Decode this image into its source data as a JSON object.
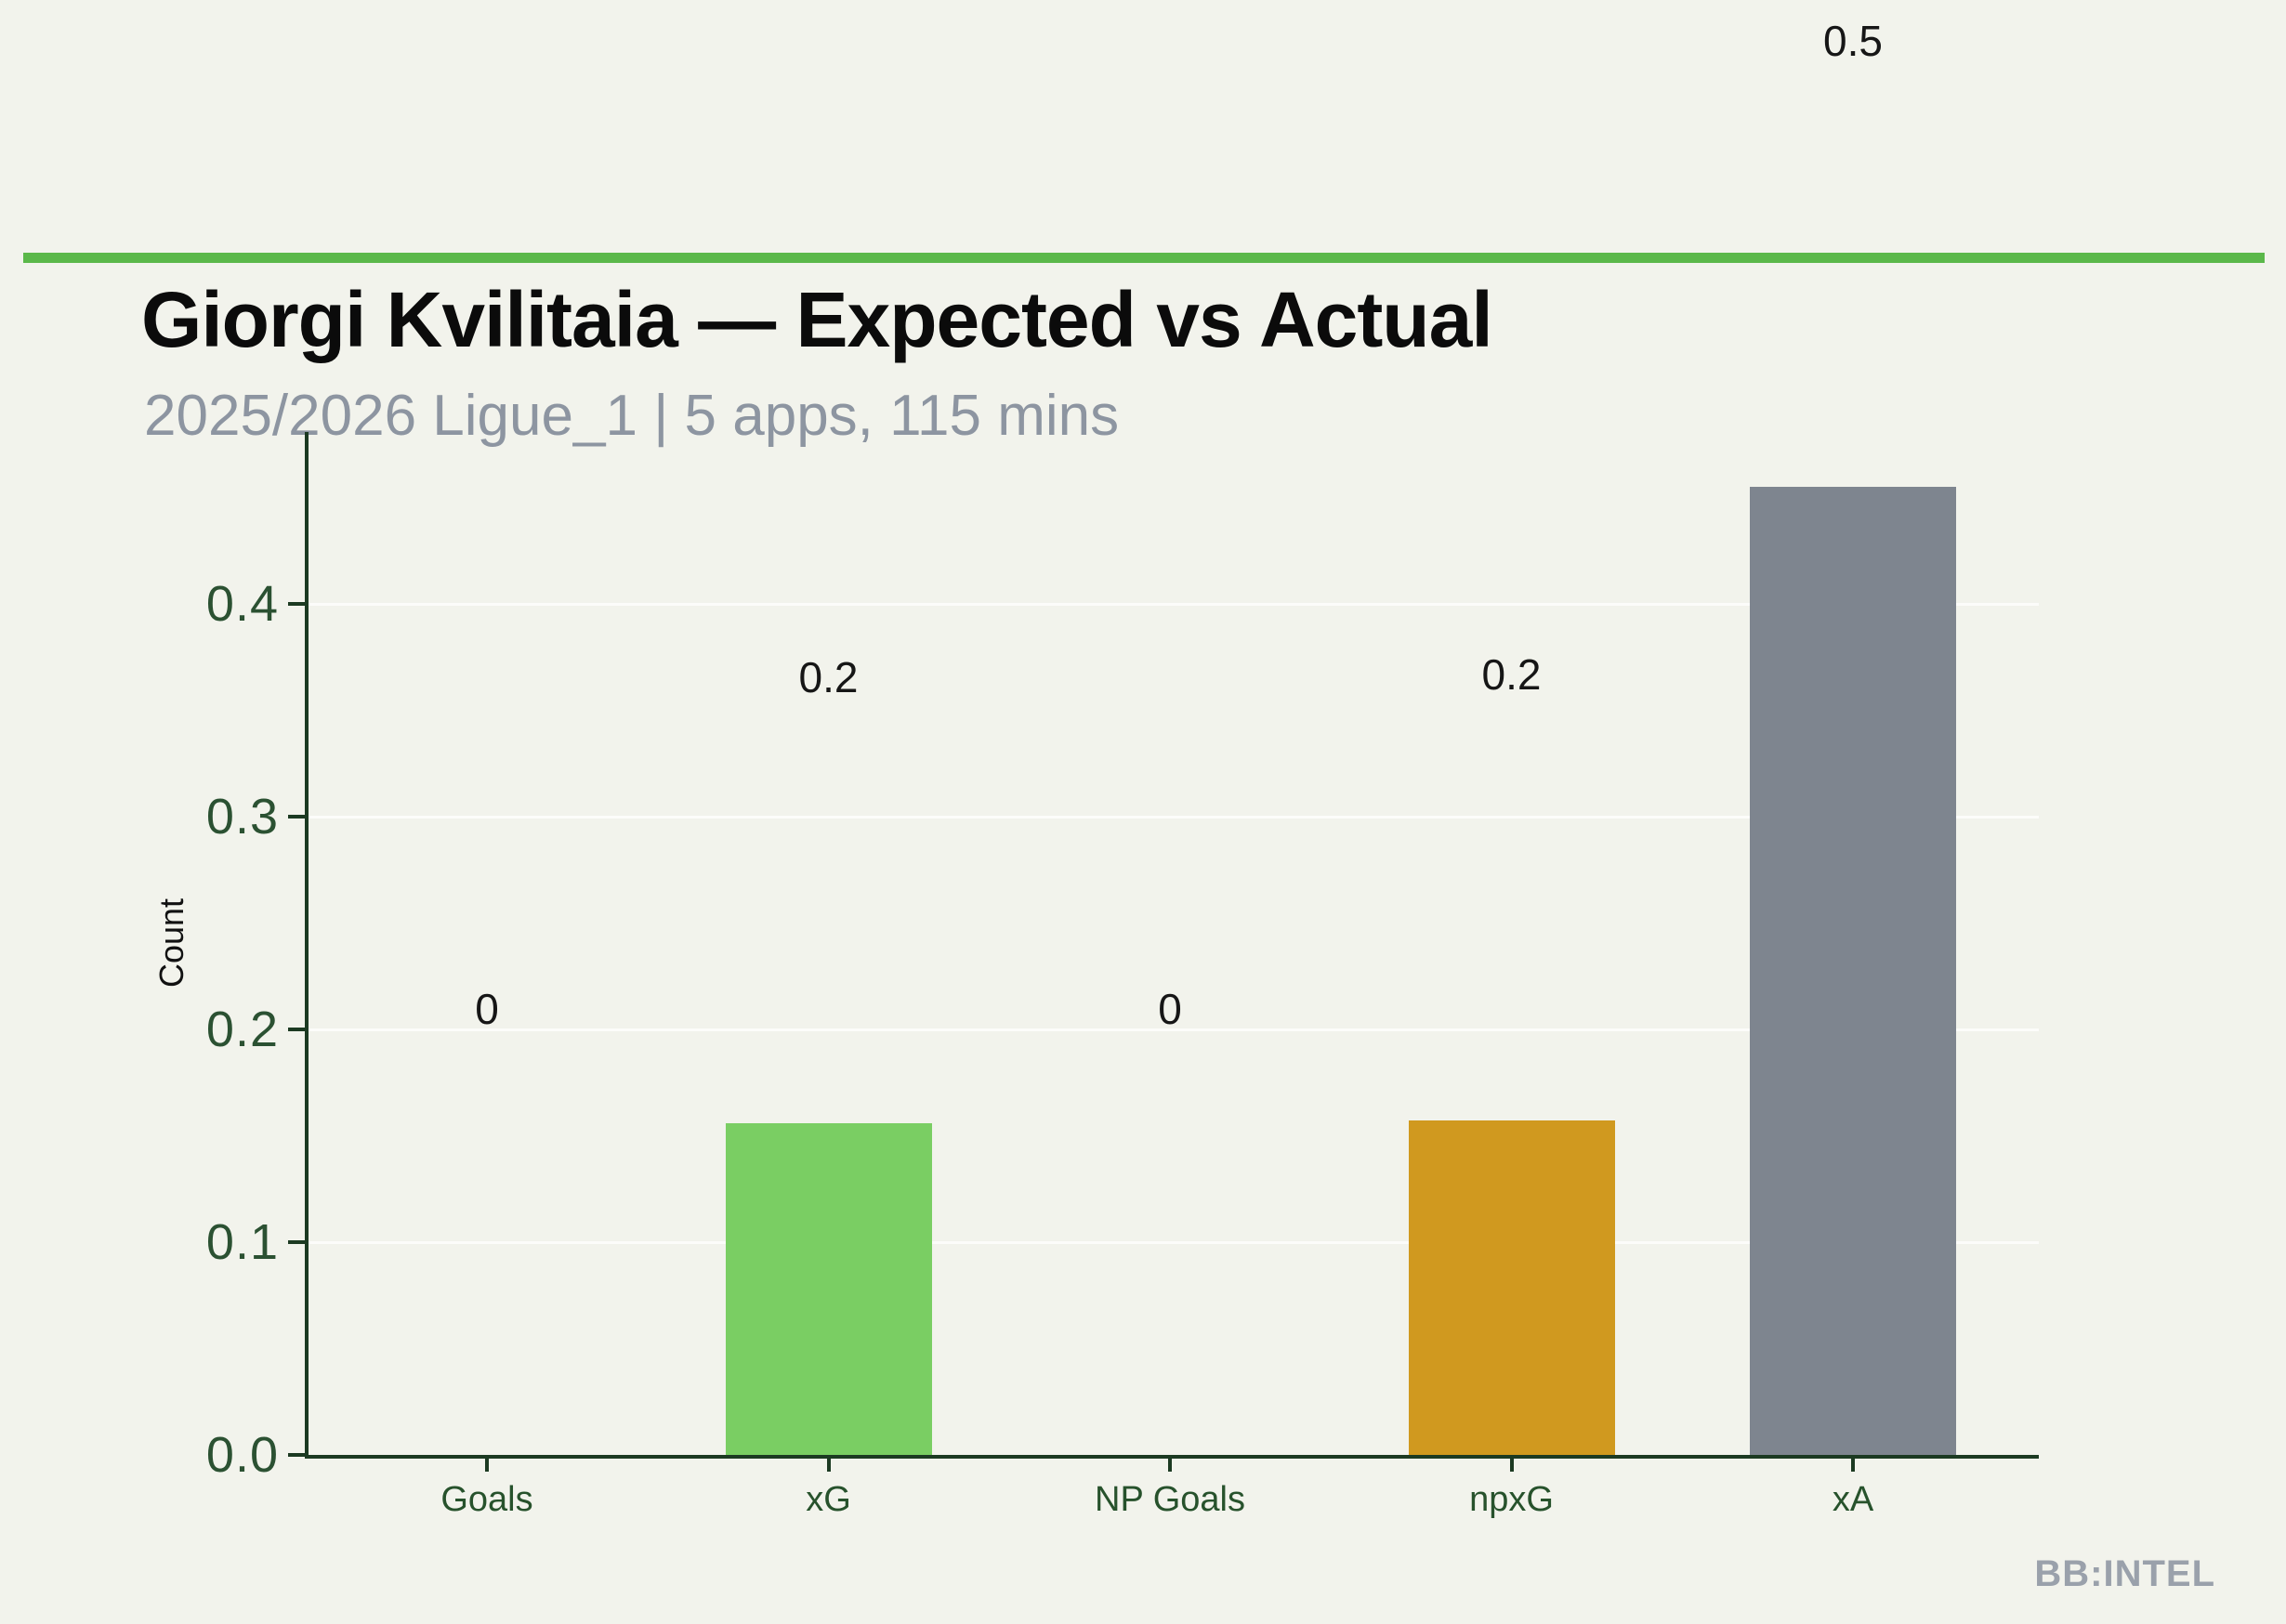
{
  "page": {
    "background_color": "#f2f3ec",
    "accent_line_color": "#5bb84a"
  },
  "watermark": "BB:INTEL",
  "chart_data": {
    "type": "bar",
    "title": "Giorgi Kvilitaia — Expected vs Actual",
    "subtitle": "2025/2026 Ligue_1 | 5 apps, 115 mins",
    "xlabel": "",
    "ylabel": "Count",
    "categories": [
      "Goals",
      "xG",
      "NP Goals",
      "npxG",
      "xA"
    ],
    "values": [
      0,
      0.156,
      0,
      0.157,
      0.455
    ],
    "bar_value_labels": [
      "0",
      "0.2",
      "0",
      "0.2",
      "0.5"
    ],
    "bar_colors": [
      "#7ace63",
      "#7ace63",
      "#d0991f",
      "#d0991f",
      "#7e858f"
    ],
    "yticks": [
      0.0,
      0.1,
      0.2,
      0.3,
      0.4
    ],
    "ytick_labels": [
      "0.0",
      "0.1",
      "0.2",
      "0.3",
      "0.4"
    ],
    "ylim": [
      0,
      0.481
    ],
    "grid": "horizontal",
    "legend": "none",
    "axis_color": "#1c3a22",
    "tick_label_color": "#2b5132"
  }
}
